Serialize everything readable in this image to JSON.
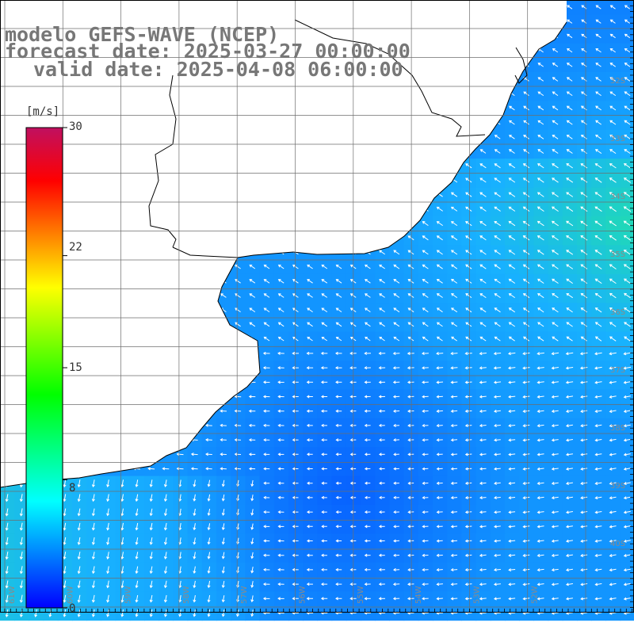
{
  "header": {
    "line1": "modelo GEFS-WAVE (NCEP)",
    "line2": "forecast date: 2025-03-27 00:00:00",
    "line3": "valid date: 2025-04-08 06:00:00"
  },
  "colorbar": {
    "unit": "[m/s]",
    "ticks": [
      "30",
      "22",
      "15",
      "8",
      "0"
    ],
    "tick_values": [
      30,
      22,
      15,
      8,
      0
    ],
    "range": [
      0,
      30
    ],
    "colors": [
      "#0000ff",
      "#0080ff",
      "#00ffff",
      "#00ff80",
      "#00ff00",
      "#80ff00",
      "#ffff00",
      "#ff8000",
      "#ff0000",
      "#c01060"
    ]
  },
  "map": {
    "lat_labels": [
      "32S",
      "33S",
      "34S",
      "35S",
      "36S",
      "37S",
      "38S",
      "39S",
      "40S"
    ],
    "lon_labels": [
      "61W",
      "60W",
      "59W",
      "58W",
      "57W",
      "56W",
      "55W",
      "54W",
      "53W",
      "52W"
    ],
    "land_color": "#ffffff",
    "grid_color": "#777777",
    "coast_color": "#000000"
  }
}
